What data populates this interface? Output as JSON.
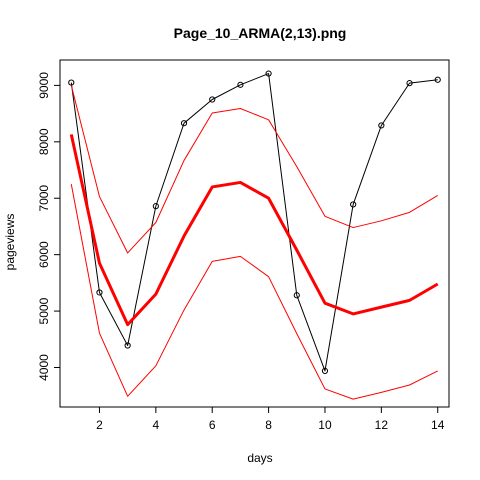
{
  "chart_data": {
    "type": "line",
    "title": "Page_10_ARMA(2,13).png",
    "xlabel": "days",
    "ylabel": "pageviews",
    "xlim": [
      0.6,
      14.4
    ],
    "ylim": [
      3300,
      9450
    ],
    "x_ticks": [
      2,
      4,
      6,
      8,
      10,
      12,
      14
    ],
    "y_ticks": [
      4000,
      5000,
      6000,
      7000,
      8000,
      9000
    ],
    "x": [
      1,
      2,
      3,
      4,
      5,
      6,
      7,
      8,
      9,
      10,
      11,
      12,
      13,
      14
    ],
    "grid": false,
    "legend": "none",
    "series": [
      {
        "role": "observed",
        "color": "#000000",
        "markers": true,
        "values": [
          9050,
          5330,
          4390,
          6860,
          8330,
          8750,
          9010,
          9210,
          5280,
          3940,
          6890,
          8290,
          9040,
          9100
        ]
      },
      {
        "role": "forecast",
        "color": "#ff0000",
        "markers": false,
        "values": [
          8130,
          5850,
          4760,
          5300,
          6330,
          7200,
          7280,
          7000,
          6080,
          5140,
          4950,
          5070,
          5190,
          5480
        ]
      },
      {
        "role": "upper",
        "color": "#ff0000",
        "markers": false,
        "values": [
          9000,
          7030,
          6030,
          6570,
          7670,
          8510,
          8590,
          8390,
          7560,
          6680,
          6480,
          6600,
          6750,
          7050
        ]
      },
      {
        "role": "lower",
        "color": "#ff0000",
        "markers": false,
        "values": [
          7250,
          4610,
          3490,
          4030,
          5020,
          5880,
          5970,
          5610,
          4600,
          3620,
          3440,
          3560,
          3690,
          3940
        ]
      }
    ]
  }
}
